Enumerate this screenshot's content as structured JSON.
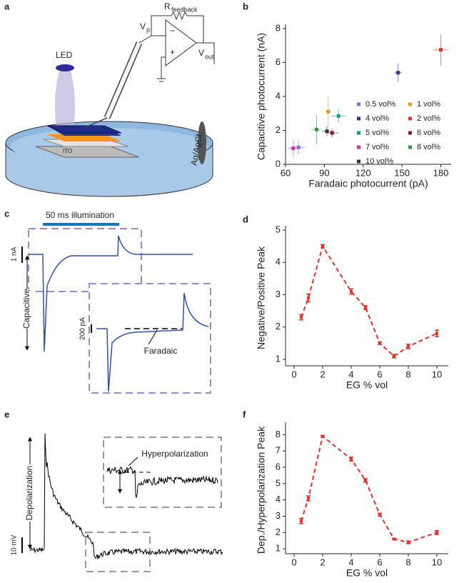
{
  "panel_labels": [
    "a",
    "b",
    "c",
    "d",
    "e",
    "f"
  ],
  "diagram": {
    "r": "R",
    "r_sub": "feedback",
    "vp": "V",
    "vp_sub": "p",
    "vout": "V",
    "vout_sub": "out",
    "minus": "−",
    "plus": "+",
    "led": "LED",
    "ito": "ITO",
    "electrode": "Ag/AgCl"
  },
  "trace_c": {
    "illumination": "50 ms illumination",
    "scale": "1 nA",
    "capacitive": "Capacitive",
    "inset_scale": "200 pA",
    "faradaic": "Faradaic"
  },
  "trace_e": {
    "depolarization": "Depolarization",
    "hyperpolarization": "Hyperpolarization",
    "scale": "10 mV"
  },
  "chart_data": [
    {
      "type": "scatter",
      "x_label": "Faradaic photocurrent (pA)",
      "y_label": "Capacitive photocurrent (nA)",
      "xlim": [
        60,
        188
      ],
      "xticks": [
        60,
        90,
        120,
        150,
        180
      ],
      "ylim": [
        0,
        8
      ],
      "yticks": [
        0,
        2,
        4,
        6,
        8
      ],
      "series": [
        {
          "name": "0.5 vol%",
          "color": "#7b6fd8",
          "x": [
            70
          ],
          "values": [
            1.0
          ],
          "xerr": [
            5
          ],
          "yerr": [
            0.4
          ]
        },
        {
          "name": "1 vol%",
          "color": "#f39321",
          "x": [
            93
          ],
          "values": [
            3.1
          ],
          "xerr": [
            2
          ],
          "yerr": [
            0.9
          ]
        },
        {
          "name": "4 vol%",
          "color": "#2e3192",
          "x": [
            147
          ],
          "values": [
            5.4
          ],
          "xerr": [
            3
          ],
          "yerr": [
            0.55
          ]
        },
        {
          "name": "2 vol%",
          "color": "#e8302a",
          "x": [
            180
          ],
          "values": [
            6.75
          ],
          "xerr": [
            6
          ],
          "yerr": [
            0.9
          ]
        },
        {
          "name": "5 vol%",
          "color": "#1a9a8e",
          "x": [
            101
          ],
          "values": [
            2.85
          ],
          "xerr": [
            6
          ],
          "yerr": [
            0.4
          ]
        },
        {
          "name": "6 vol%",
          "color": "#7a1f2b",
          "x": [
            96
          ],
          "values": [
            1.85
          ],
          "xerr": [
            5
          ],
          "yerr": [
            0.25
          ]
        },
        {
          "name": "7 vol%",
          "color": "#e0309a",
          "x": [
            66
          ],
          "values": [
            0.95
          ],
          "xerr": [
            4
          ],
          "yerr": [
            0.5
          ]
        },
        {
          "name": "8 vol%",
          "color": "#2a9a4a",
          "x": [
            84
          ],
          "values": [
            2.05
          ],
          "xerr": [
            4
          ],
          "yerr": [
            0.85
          ]
        },
        {
          "name": "10 vol%",
          "color": "#333333",
          "x": [
            92
          ],
          "values": [
            1.95
          ],
          "xerr": [
            4
          ],
          "yerr": [
            0.3
          ]
        }
      ]
    },
    {
      "type": "line",
      "x_label": "EG % vol",
      "y_label": "Negative/Positive Peak",
      "xlim": [
        -0.6,
        10.8
      ],
      "xticks": [
        0,
        2,
        4,
        6,
        8,
        10
      ],
      "ylim": [
        0.8,
        5
      ],
      "yticks": [
        1,
        2,
        3,
        4,
        5
      ],
      "color": "#e8302a",
      "x": [
        0.5,
        1,
        2,
        4,
        5,
        6,
        7,
        8,
        10
      ],
      "values": [
        2.3,
        2.9,
        4.5,
        3.1,
        2.6,
        1.5,
        1.1,
        1.4,
        1.8
      ],
      "yerr": [
        0.08,
        0.12,
        0.05,
        0.08,
        0.06,
        0.04,
        0.05,
        0.07,
        0.1
      ]
    },
    {
      "type": "line",
      "x_label": "EG % vol",
      "y_label": "Dep./Hyperpolarization Peak",
      "xlim": [
        -0.6,
        10.8
      ],
      "xticks": [
        0,
        2,
        4,
        6,
        8,
        10
      ],
      "ylim": [
        0.7,
        8.5
      ],
      "yticks": [
        1,
        2,
        3,
        4,
        5,
        6,
        7,
        8
      ],
      "color": "#e8302a",
      "x": [
        0.5,
        1,
        2,
        4,
        5,
        6,
        7,
        8,
        10
      ],
      "values": [
        2.7,
        4.1,
        7.9,
        6.5,
        5.2,
        3.1,
        1.6,
        1.4,
        2.0
      ],
      "yerr": [
        0.15,
        0.15,
        0.06,
        0.12,
        0.1,
        0.08,
        0.05,
        0.08,
        0.12
      ]
    }
  ]
}
